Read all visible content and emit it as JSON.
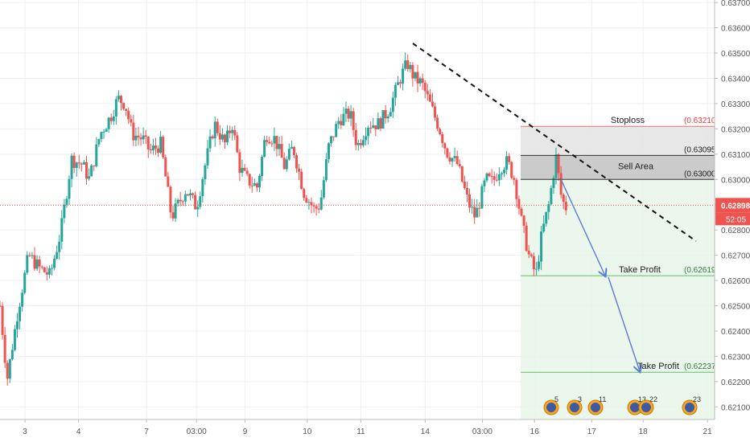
{
  "chart_data": {
    "type": "candlestick",
    "title": "",
    "colors": {
      "up": "#26a69a",
      "down": "#ef5350",
      "grid": "#eceff3",
      "green_zone": "#e8f5e9",
      "red_zone": "#e0e0e0",
      "sell_zone": "#bdbdbd",
      "arrow": "#5b7bd5",
      "last_price": "#ef5350"
    },
    "ylim": [
      0.6205,
      0.6371
    ],
    "y_ticks": [
      "0.63700",
      "0.63600",
      "0.63500",
      "0.63400",
      "0.63300",
      "0.63200",
      "0.63100",
      "0.63000",
      "0.62900",
      "0.62800",
      "0.62700",
      "0.62600",
      "0.62500",
      "0.62400",
      "0.62300",
      "0.62200",
      "0.62100"
    ],
    "x_ticks": [
      {
        "label": "3",
        "pos": 0.035
      },
      {
        "label": "4",
        "pos": 0.11
      },
      {
        "label": "7",
        "pos": 0.205
      },
      {
        "label": "03:00",
        "pos": 0.275
      },
      {
        "label": "9",
        "pos": 0.343
      },
      {
        "label": "10",
        "pos": 0.43
      },
      {
        "label": "11",
        "pos": 0.505
      },
      {
        "label": "14",
        "pos": 0.595
      },
      {
        "label": "03:00",
        "pos": 0.675
      },
      {
        "label": "16",
        "pos": 0.748
      },
      {
        "label": "17",
        "pos": 0.828
      },
      {
        "label": "18",
        "pos": 0.9
      },
      {
        "label": "21",
        "pos": 0.99
      }
    ],
    "price_path": [
      [
        0.0,
        0.625
      ],
      [
        0.01,
        0.6221
      ],
      [
        0.025,
        0.6248
      ],
      [
        0.04,
        0.627
      ],
      [
        0.055,
        0.6265
      ],
      [
        0.07,
        0.6262
      ],
      [
        0.085,
        0.6279
      ],
      [
        0.1,
        0.6308
      ],
      [
        0.115,
        0.6306
      ],
      [
        0.125,
        0.63
      ],
      [
        0.14,
        0.6318
      ],
      [
        0.155,
        0.6325
      ],
      [
        0.165,
        0.6332
      ],
      [
        0.175,
        0.633
      ],
      [
        0.185,
        0.6318
      ],
      [
        0.2,
        0.6316
      ],
      [
        0.21,
        0.6311
      ],
      [
        0.225,
        0.6314
      ],
      [
        0.24,
        0.6285
      ],
      [
        0.26,
        0.6296
      ],
      [
        0.275,
        0.6289
      ],
      [
        0.285,
        0.6303
      ],
      [
        0.3,
        0.6322
      ],
      [
        0.315,
        0.6314
      ],
      [
        0.325,
        0.6322
      ],
      [
        0.335,
        0.6305
      ],
      [
        0.345,
        0.63
      ],
      [
        0.36,
        0.6297
      ],
      [
        0.372,
        0.6318
      ],
      [
        0.385,
        0.6316
      ],
      [
        0.398,
        0.6305
      ],
      [
        0.41,
        0.6313
      ],
      [
        0.425,
        0.6295
      ],
      [
        0.44,
        0.6288
      ],
      [
        0.448,
        0.629
      ],
      [
        0.46,
        0.6313
      ],
      [
        0.475,
        0.6324
      ],
      [
        0.49,
        0.6326
      ],
      [
        0.5,
        0.6313
      ],
      [
        0.515,
        0.6322
      ],
      [
        0.53,
        0.6322
      ],
      [
        0.545,
        0.6328
      ],
      [
        0.56,
        0.634
      ],
      [
        0.57,
        0.6346
      ],
      [
        0.58,
        0.634
      ],
      [
        0.59,
        0.6338
      ],
      [
        0.6,
        0.6331
      ],
      [
        0.615,
        0.632
      ],
      [
        0.625,
        0.6311
      ],
      [
        0.64,
        0.6306
      ],
      [
        0.655,
        0.6291
      ],
      [
        0.665,
        0.6285
      ],
      [
        0.68,
        0.63
      ],
      [
        0.69,
        0.6299
      ],
      [
        0.7,
        0.6305
      ],
      [
        0.71,
        0.6307
      ],
      [
        0.72,
        0.63
      ],
      [
        0.73,
        0.6283
      ],
      [
        0.74,
        0.627
      ],
      [
        0.75,
        0.6262
      ],
      [
        0.758,
        0.6278
      ],
      [
        0.768,
        0.629
      ],
      [
        0.778,
        0.6309
      ],
      [
        0.786,
        0.6292
      ],
      [
        0.792,
        0.6289
      ]
    ],
    "last_price": "0.62898",
    "countdown": "52:05",
    "levels": [
      {
        "name": "Stoploss",
        "value": "0.63210"
      },
      {
        "name": "",
        "value": "0.63095"
      },
      {
        "name": "Sell Area",
        "value": "0.63000"
      },
      {
        "name": "Take Profit",
        "value": "0.62619"
      },
      {
        "name": "Take Profit",
        "value": "0.62237"
      }
    ],
    "event_badges": [
      "5",
      "3",
      "11",
      "13",
      "22",
      "23"
    ]
  }
}
